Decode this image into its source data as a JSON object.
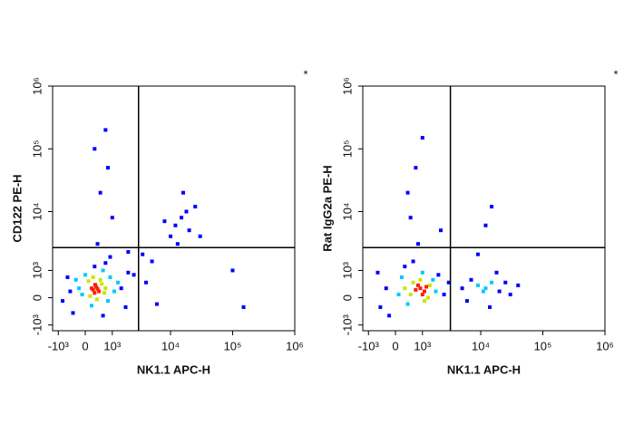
{
  "chart_data": [
    {
      "type": "scatter",
      "x_label": "NK1.1 APC-H",
      "y_label": "CD122 PE-H",
      "annotation": "*",
      "xlim": [
        -1300,
        1000000
      ],
      "ylim": [
        -1300,
        1000000
      ],
      "xticks": [
        {
          "value": -1000,
          "label": "-10³"
        },
        0,
        {
          "value": 1000,
          "label": "10³"
        },
        {
          "value": 10000,
          "label": "10⁴"
        },
        {
          "value": 100000,
          "label": "10⁵"
        },
        {
          "value": 1000000,
          "label": "10⁶"
        }
      ],
      "yticks": [
        {
          "value": -1000,
          "label": "-10³"
        },
        0,
        {
          "value": 1000,
          "label": "10³"
        },
        {
          "value": 10000,
          "label": "10⁴"
        },
        {
          "value": 100000,
          "label": "10⁵"
        },
        {
          "value": 1000000,
          "label": "10⁶"
        }
      ],
      "gates": {
        "x": 3000,
        "y": 2600
      },
      "series": [
        {
          "color": "#0000ff",
          "x": [
            -500,
            1500,
            2000,
            -400,
            1800,
            600,
            300,
            700,
            2500,
            -600,
            12000,
            15000,
            20000,
            18000,
            10000,
            13000,
            25000,
            8000,
            16000,
            500,
            800,
            300,
            700,
            1000,
            400,
            5000,
            4000,
            6000,
            30000,
            100000,
            150000,
            3500,
            2000,
            900,
            -800
          ],
          "values": [
            200,
            300,
            900,
            -500,
            -300,
            -600,
            1200,
            1400,
            800,
            700,
            6000,
            8000,
            5000,
            10000,
            4000,
            3000,
            12000,
            7000,
            20000,
            20000,
            50000,
            100000,
            200000,
            8000,
            3000,
            1500,
            500,
            -200,
            4000,
            1000,
            -300,
            2000,
            2200,
            1800,
            -100
          ]
        },
        {
          "color": "#00c8ff",
          "x": [
            -200,
            900,
            1100,
            0,
            800,
            -100,
            1300,
            600,
            200,
            -300
          ],
          "values": [
            300,
            700,
            200,
            800,
            -100,
            100,
            500,
            1000,
            -250,
            600
          ]
        },
        {
          "color": "#c8e600",
          "x": [
            100,
            550,
            650,
            150,
            500,
            250,
            700,
            380
          ],
          "values": [
            550,
            450,
            150,
            50,
            600,
            700,
            300,
            -50
          ]
        },
        {
          "color": "#ff1e00",
          "x": [
            250,
            350,
            450,
            300,
            200,
            400,
            320
          ],
          "values": [
            250,
            350,
            200,
            150,
            300,
            280,
            420
          ]
        }
      ]
    },
    {
      "type": "scatter",
      "x_label": "NK1.1 APC-H",
      "y_label": "Rat IgG2a PE-H",
      "annotation": "*",
      "xlim": [
        -1300,
        1000000
      ],
      "ylim": [
        -1300,
        1000000
      ],
      "xticks": [
        {
          "value": -1000,
          "label": "-10³"
        },
        0,
        {
          "value": 1000,
          "label": "10³"
        },
        {
          "value": 10000,
          "label": "10⁴"
        },
        {
          "value": 100000,
          "label": "10⁵"
        },
        {
          "value": 1000000,
          "label": "10⁶"
        }
      ],
      "yticks": [
        {
          "value": -1000,
          "label": "-10³"
        },
        0,
        {
          "value": 1000,
          "label": "10³"
        },
        {
          "value": 10000,
          "label": "10⁴"
        },
        {
          "value": 100000,
          "label": "10⁵"
        },
        {
          "value": 1000000,
          "label": "10⁶"
        }
      ],
      "gates": {
        "x": 3200,
        "y": 2600
      },
      "series": [
        {
          "color": "#0000ff",
          "x": [
            -300,
            -500,
            2000,
            2500,
            -200,
            3000,
            5000,
            7000,
            20000,
            25000,
            30000,
            18000,
            6000,
            14000,
            40000,
            600,
            800,
            500,
            700,
            1000,
            400,
            9000,
            15000,
            12000,
            300,
            -600,
            2200
          ],
          "values": [
            300,
            -300,
            800,
            100,
            -600,
            500,
            300,
            600,
            200,
            500,
            100,
            900,
            -100,
            -300,
            400,
            1500,
            3000,
            8000,
            50000,
            150000,
            20000,
            2000,
            12000,
            6000,
            1200,
            900,
            5000
          ]
        },
        {
          "color": "#00c8ff",
          "x": [
            200,
            1800,
            100,
            1600,
            1000,
            400,
            9000,
            12000,
            15000,
            11000
          ],
          "values": [
            700,
            200,
            100,
            600,
            900,
            -200,
            400,
            300,
            500,
            200
          ]
        },
        {
          "color": "#c8e600",
          "x": [
            600,
            1400,
            500,
            1300,
            900,
            1100,
            300
          ],
          "values": [
            500,
            400,
            100,
            0,
            600,
            -100,
            300
          ]
        },
        {
          "color": "#ff1e00",
          "x": [
            900,
            1100,
            800,
            1000,
            1200,
            700
          ],
          "values": [
            300,
            200,
            400,
            100,
            350,
            250
          ]
        }
      ]
    }
  ]
}
